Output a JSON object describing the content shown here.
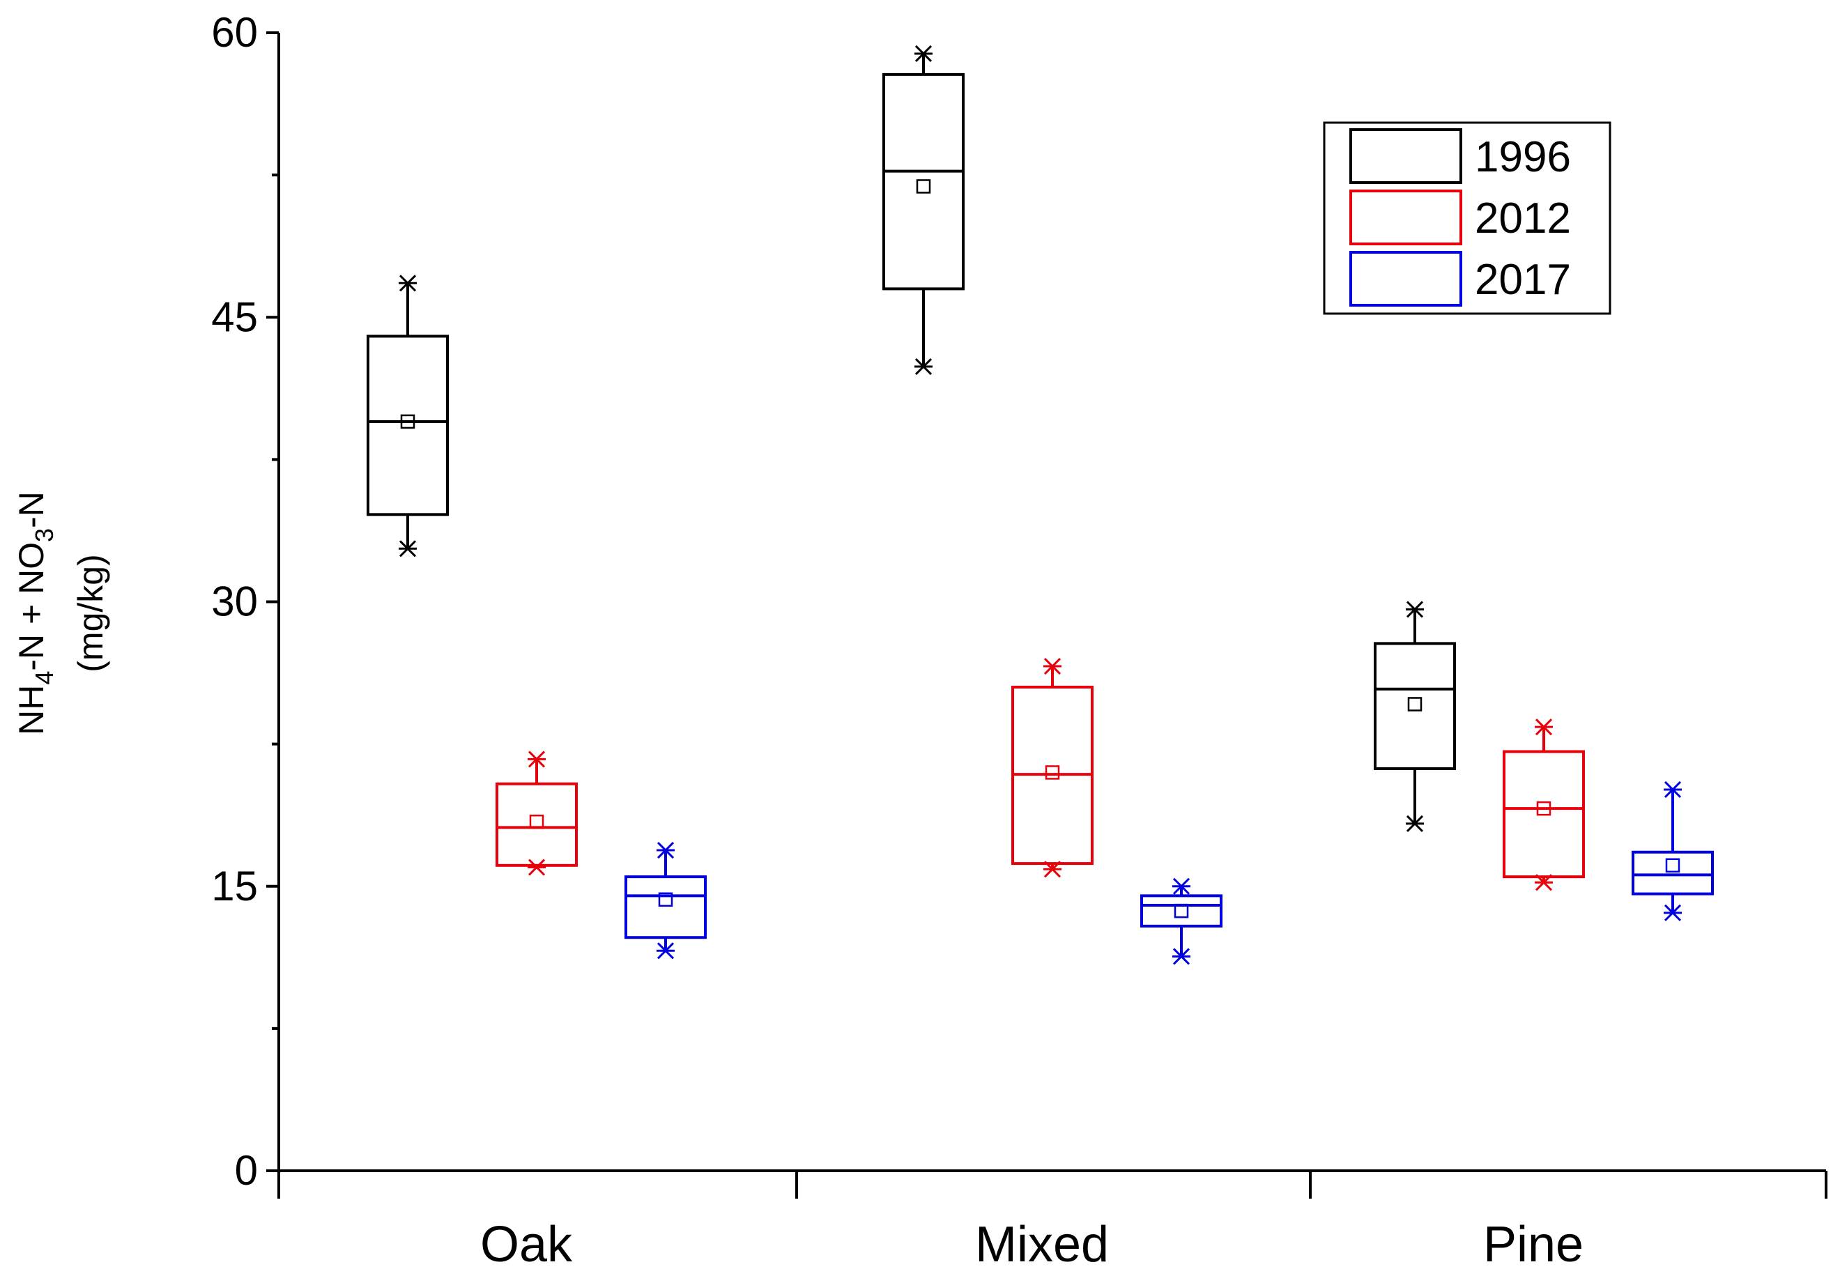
{
  "chart_data": {
    "type": "box",
    "title": "",
    "xlabel": "",
    "ylabel_line1_parts": [
      "NH",
      "4",
      "-N + NO",
      "3",
      "-N"
    ],
    "ylabel_line2": "(mg/kg)",
    "ylim": [
      0,
      60
    ],
    "yticks": [
      0,
      15,
      30,
      45,
      60
    ],
    "yticks_labels": [
      "0",
      "15",
      "30",
      "45",
      "60"
    ],
    "categories": [
      "Oak",
      "Mixed",
      "Pine"
    ],
    "legend_position": "top-right",
    "series": [
      {
        "name": "1996",
        "color": "#000000",
        "boxes": [
          {
            "category": "Oak",
            "min": 32.8,
            "q1": 34.6,
            "median": 39.5,
            "mean": 39.5,
            "q3": 44.0,
            "max": 46.8
          },
          {
            "category": "Mixed",
            "min": 42.4,
            "q1": 46.5,
            "median": 52.7,
            "mean": 51.9,
            "q3": 57.8,
            "max": 58.9
          },
          {
            "category": "Pine",
            "min": 18.3,
            "q1": 21.2,
            "median": 25.4,
            "mean": 24.6,
            "q3": 27.8,
            "max": 29.6
          }
        ]
      },
      {
        "name": "2012",
        "color": "#e8000b",
        "boxes": [
          {
            "category": "Oak",
            "min": 16.0,
            "q1": 16.1,
            "median": 18.1,
            "mean": 18.4,
            "q3": 20.4,
            "max": 21.7
          },
          {
            "category": "Mixed",
            "min": 15.9,
            "q1": 16.2,
            "median": 20.9,
            "mean": 21.0,
            "q3": 25.5,
            "max": 26.6
          },
          {
            "category": "Pine",
            "min": 15.2,
            "q1": 15.5,
            "median": 19.1,
            "mean": 19.1,
            "q3": 22.1,
            "max": 23.4
          }
        ]
      },
      {
        "name": "2017",
        "color": "#0000e0",
        "boxes": [
          {
            "category": "Oak",
            "min": 11.6,
            "q1": 12.3,
            "median": 14.5,
            "mean": 14.3,
            "q3": 15.5,
            "max": 16.9
          },
          {
            "category": "Mixed",
            "min": 11.3,
            "q1": 12.9,
            "median": 14.0,
            "mean": 13.7,
            "q3": 14.5,
            "max": 15.0
          },
          {
            "category": "Pine",
            "min": 13.6,
            "q1": 14.6,
            "median": 15.6,
            "mean": 16.1,
            "q3": 16.8,
            "max": 20.1
          }
        ]
      }
    ]
  }
}
